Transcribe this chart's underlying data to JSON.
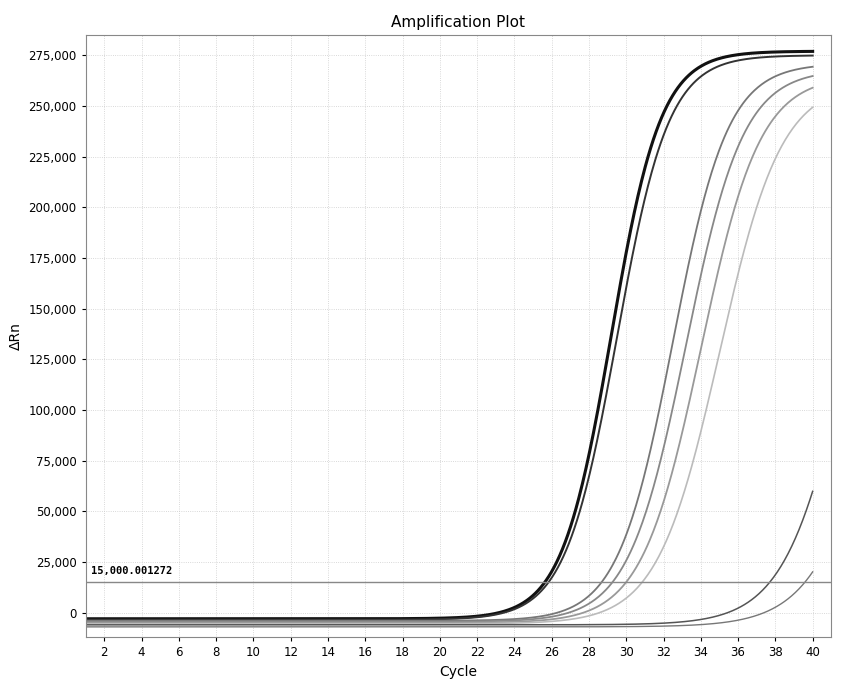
{
  "title": "Amplification Plot",
  "xlabel": "Cycle",
  "ylabel": "ΔRn",
  "xlim": [
    1,
    41
  ],
  "ylim": [
    -12000,
    285000
  ],
  "xticks": [
    2,
    4,
    6,
    8,
    10,
    12,
    14,
    16,
    18,
    20,
    22,
    24,
    26,
    28,
    30,
    32,
    34,
    36,
    38,
    40
  ],
  "yticks": [
    0,
    25000,
    50000,
    75000,
    100000,
    125000,
    150000,
    175000,
    200000,
    225000,
    250000,
    275000
  ],
  "threshold": 15000.001272,
  "threshold_label": "15,000.001272",
  "background_color": "#ffffff",
  "grid_color": "#cccccc",
  "curves": [
    {
      "midpoint": 29.2,
      "max_value": 277000,
      "min_value": -3000,
      "steepness": 0.75,
      "color": "#111111",
      "linewidth": 2.2
    },
    {
      "midpoint": 29.5,
      "max_value": 275000,
      "min_value": -3500,
      "steepness": 0.72,
      "color": "#333333",
      "linewidth": 1.4
    },
    {
      "midpoint": 32.5,
      "max_value": 271000,
      "min_value": -4000,
      "steepness": 0.68,
      "color": "#777777",
      "linewidth": 1.3
    },
    {
      "midpoint": 33.2,
      "max_value": 268000,
      "min_value": -4500,
      "steepness": 0.65,
      "color": "#888888",
      "linewidth": 1.3
    },
    {
      "midpoint": 34.0,
      "max_value": 265000,
      "min_value": -5000,
      "steepness": 0.63,
      "color": "#999999",
      "linewidth": 1.3
    },
    {
      "midpoint": 35.0,
      "max_value": 262000,
      "min_value": -5500,
      "steepness": 0.6,
      "color": "#bbbbbb",
      "linewidth": 1.2
    },
    {
      "midpoint": 42.0,
      "max_value": 270000,
      "min_value": -6000,
      "steepness": 0.58,
      "color": "#555555",
      "linewidth": 1.1
    },
    {
      "midpoint": 44.0,
      "max_value": 265000,
      "min_value": -7000,
      "steepness": 0.55,
      "color": "#777777",
      "linewidth": 1.0
    }
  ]
}
